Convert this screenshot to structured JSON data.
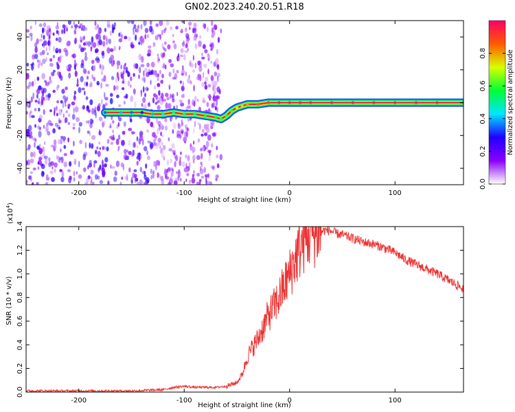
{
  "title": "GN02.2023.240.20.51.R18",
  "chart_data": [
    {
      "type": "heatmap",
      "xlabel": "Height of straight line (km)",
      "ylabel": "Frequency (Hz)",
      "xlim": [
        -250,
        165
      ],
      "ylim": [
        -50,
        50
      ],
      "xticks": [
        -200,
        -100,
        0,
        100
      ],
      "yticks": [
        -40,
        -20,
        0,
        20,
        40
      ],
      "grid": false,
      "colorbar": {
        "label": "Normalized spectral amplitude",
        "range": [
          0.0,
          1.0
        ],
        "ticks": [
          0.0,
          0.2,
          0.4,
          0.6,
          0.8
        ],
        "tick_labels": [
          "0.0",
          "0.2",
          "0.4",
          "0.6",
          "0.8"
        ],
        "colors": [
          "#ffffff",
          "#8c00ff",
          "#1f00ff",
          "#00e5ff",
          "#00ff33",
          "#d7ff00",
          "#ff5a00",
          "#ff0066"
        ]
      },
      "ridge": {
        "x": [
          -175,
          -160,
          -150,
          -140,
          -130,
          -120,
          -110,
          -100,
          -90,
          -80,
          -70,
          -65,
          -60,
          -55,
          -50,
          -45,
          -40,
          -30,
          -20,
          -10,
          0,
          10,
          20,
          40,
          60,
          80,
          100,
          120,
          140,
          165
        ],
        "y": [
          -6,
          -6,
          -6,
          -6,
          -7,
          -7,
          -6,
          -7,
          -7,
          -8,
          -9,
          -10,
          -8,
          -5,
          -3,
          -2,
          -1,
          -1,
          0,
          0,
          0,
          0,
          0,
          0,
          0,
          0,
          0,
          0,
          0,
          0
        ],
        "amplitude": [
          0.35,
          0.4,
          0.35,
          0.3,
          0.4,
          0.45,
          0.5,
          0.5,
          0.5,
          0.55,
          0.55,
          0.6,
          0.6,
          0.6,
          0.7,
          0.75,
          0.8,
          0.85,
          0.9,
          0.95,
          0.95,
          0.95,
          0.95,
          0.95,
          0.95,
          0.95,
          0.95,
          0.95,
          0.95,
          0.95
        ]
      },
      "noise_region": {
        "x": [
          -250,
          -65
        ],
        "amplitude_max": 0.25
      }
    },
    {
      "type": "line",
      "xlabel": "Height of straight line (km)",
      "ylabel": "SNR (10 * v/v)",
      "y_multiplier": "(x10",
      "y_multiplier_exp": "4",
      "y_multiplier_close": ")",
      "xlim": [
        -250,
        165
      ],
      "ylim": [
        0.0,
        1.4
      ],
      "xticks": [
        -200,
        -100,
        0,
        100
      ],
      "yticks": [
        0.0,
        0.2,
        0.4,
        0.6,
        0.8,
        1.0,
        1.2,
        1.4
      ],
      "ytick_labels": [
        "0.0",
        "0.2",
        "0.4",
        "0.6",
        "0.8",
        "1.0",
        "1.2",
        "1.4"
      ],
      "grid": false,
      "color": "#ee3333",
      "x": [
        -250,
        -200,
        -150,
        -120,
        -110,
        -100,
        -90,
        -80,
        -70,
        -60,
        -50,
        -45,
        -40,
        -35,
        -30,
        -25,
        -20,
        -15,
        -10,
        -5,
        0,
        5,
        10,
        15,
        20,
        25,
        30,
        35,
        40,
        45,
        50,
        60,
        70,
        80,
        90,
        95,
        100,
        105,
        110,
        120,
        130,
        140,
        150,
        160,
        165
      ],
      "values": [
        0.01,
        0.01,
        0.01,
        0.02,
        0.04,
        0.05,
        0.04,
        0.04,
        0.04,
        0.05,
        0.08,
        0.15,
        0.3,
        0.38,
        0.45,
        0.55,
        0.65,
        0.72,
        0.8,
        0.9,
        1.0,
        1.12,
        1.22,
        1.3,
        1.34,
        1.35,
        1.36,
        1.37,
        1.36,
        1.34,
        1.33,
        1.3,
        1.27,
        1.25,
        1.22,
        1.2,
        1.18,
        1.15,
        1.12,
        1.08,
        1.04,
        1.0,
        0.95,
        0.9,
        0.87
      ]
    }
  ]
}
